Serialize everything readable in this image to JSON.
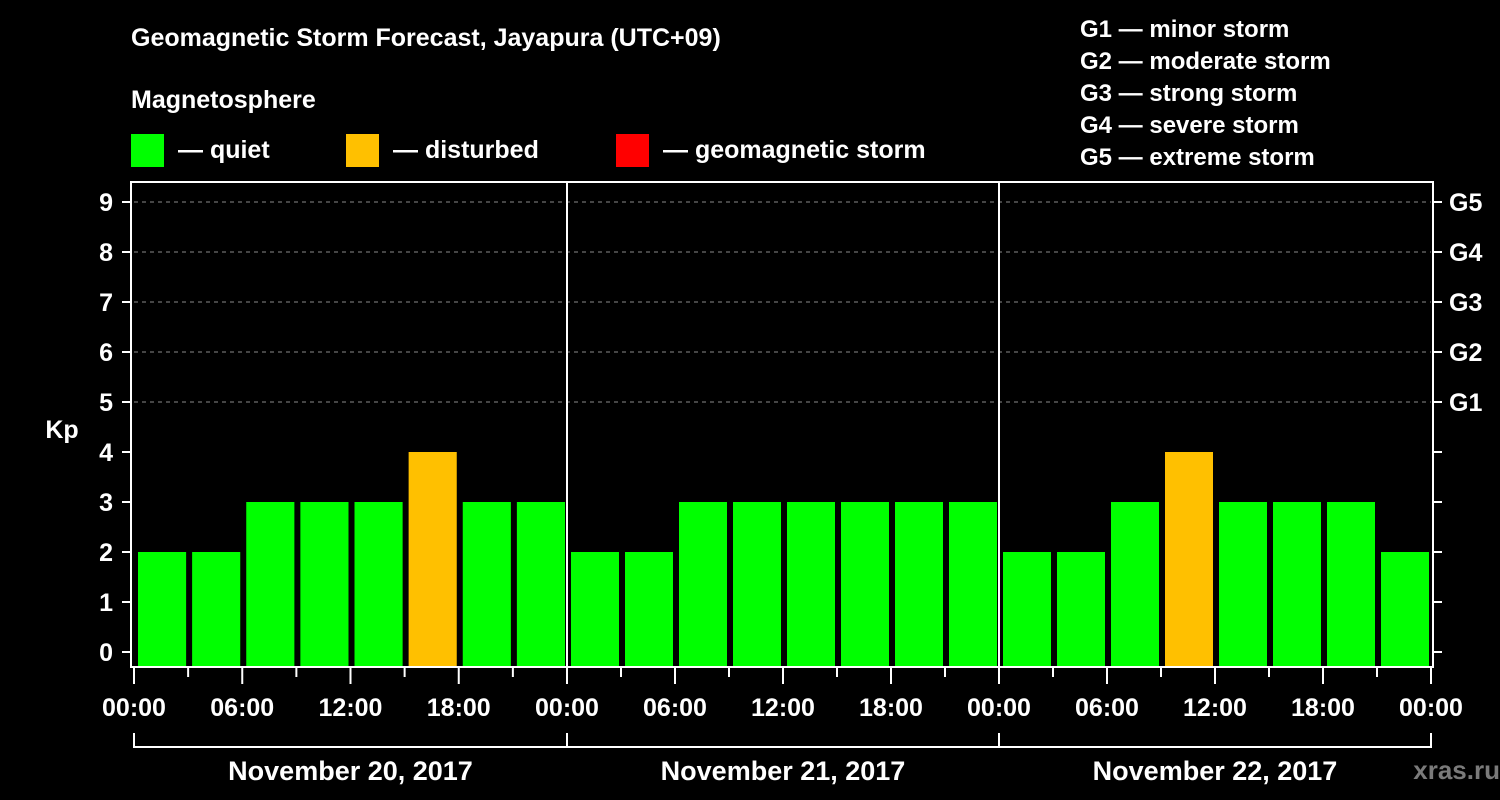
{
  "header": {
    "title": "Geomagnetic Storm Forecast, Jayapura (UTC+09)",
    "subtitle": "Magnetosphere"
  },
  "legend": {
    "items": [
      {
        "label": "— quiet",
        "color": "#00ff00"
      },
      {
        "label": "— disturbed",
        "color": "#ffc000"
      },
      {
        "label": "— geomagnetic storm",
        "color": "#ff0000"
      }
    ]
  },
  "storm_scale": {
    "items": [
      {
        "label": "G1 — minor storm"
      },
      {
        "label": "G2 — moderate storm"
      },
      {
        "label": "G3 — strong storm"
      },
      {
        "label": "G4 — severe storm"
      },
      {
        "label": "G5 — extreme storm"
      }
    ]
  },
  "axes": {
    "ylabel": "Kp",
    "y_ticks": [
      "0",
      "1",
      "2",
      "3",
      "4",
      "5",
      "6",
      "7",
      "8",
      "9"
    ],
    "right_ticks": [
      {
        "label": "G1",
        "kp": 5
      },
      {
        "label": "G2",
        "kp": 6
      },
      {
        "label": "G3",
        "kp": 7
      },
      {
        "label": "G4",
        "kp": 8
      },
      {
        "label": "G5",
        "kp": 9
      }
    ],
    "x_ticks": [
      "00:00",
      "06:00",
      "12:00",
      "18:00",
      "00:00",
      "06:00",
      "12:00",
      "18:00",
      "00:00",
      "06:00",
      "12:00",
      "18:00",
      "00:00"
    ],
    "days": [
      "November 20, 2017",
      "November 21, 2017",
      "November 22, 2017"
    ]
  },
  "watermark": "xras.ru",
  "chart_data": {
    "type": "bar",
    "title": "Geomagnetic Storm Forecast, Jayapura (UTC+09)",
    "xlabel": "",
    "ylabel": "Kp",
    "ylim": [
      0,
      9
    ],
    "grid": "dashed horizontal at Kp 5-9",
    "categories": [
      "Nov 20 00-03",
      "Nov 20 03-06",
      "Nov 20 06-09",
      "Nov 20 09-12",
      "Nov 20 12-15",
      "Nov 20 15-18",
      "Nov 20 18-21",
      "Nov 20 21-24",
      "Nov 21 00-03",
      "Nov 21 03-06",
      "Nov 21 06-09",
      "Nov 21 09-12",
      "Nov 21 12-15",
      "Nov 21 15-18",
      "Nov 21 18-21",
      "Nov 21 21-24",
      "Nov 22 00-03",
      "Nov 22 03-06",
      "Nov 22 06-09",
      "Nov 22 09-12",
      "Nov 22 12-15",
      "Nov 22 15-18",
      "Nov 22 18-21",
      "Nov 22 21-24"
    ],
    "values": [
      2,
      2,
      3,
      3,
      3,
      4,
      3,
      3,
      2,
      2,
      3,
      3,
      3,
      3,
      3,
      3,
      2,
      2,
      3,
      4,
      3,
      3,
      3,
      2
    ],
    "status": [
      "quiet",
      "quiet",
      "quiet",
      "quiet",
      "quiet",
      "disturbed",
      "quiet",
      "quiet",
      "quiet",
      "quiet",
      "quiet",
      "quiet",
      "quiet",
      "quiet",
      "quiet",
      "quiet",
      "quiet",
      "quiet",
      "quiet",
      "disturbed",
      "quiet",
      "quiet",
      "quiet",
      "quiet"
    ],
    "colors": {
      "quiet": "#00ff00",
      "disturbed": "#ffc000",
      "storm": "#ff0000"
    },
    "legend_position": "top"
  }
}
